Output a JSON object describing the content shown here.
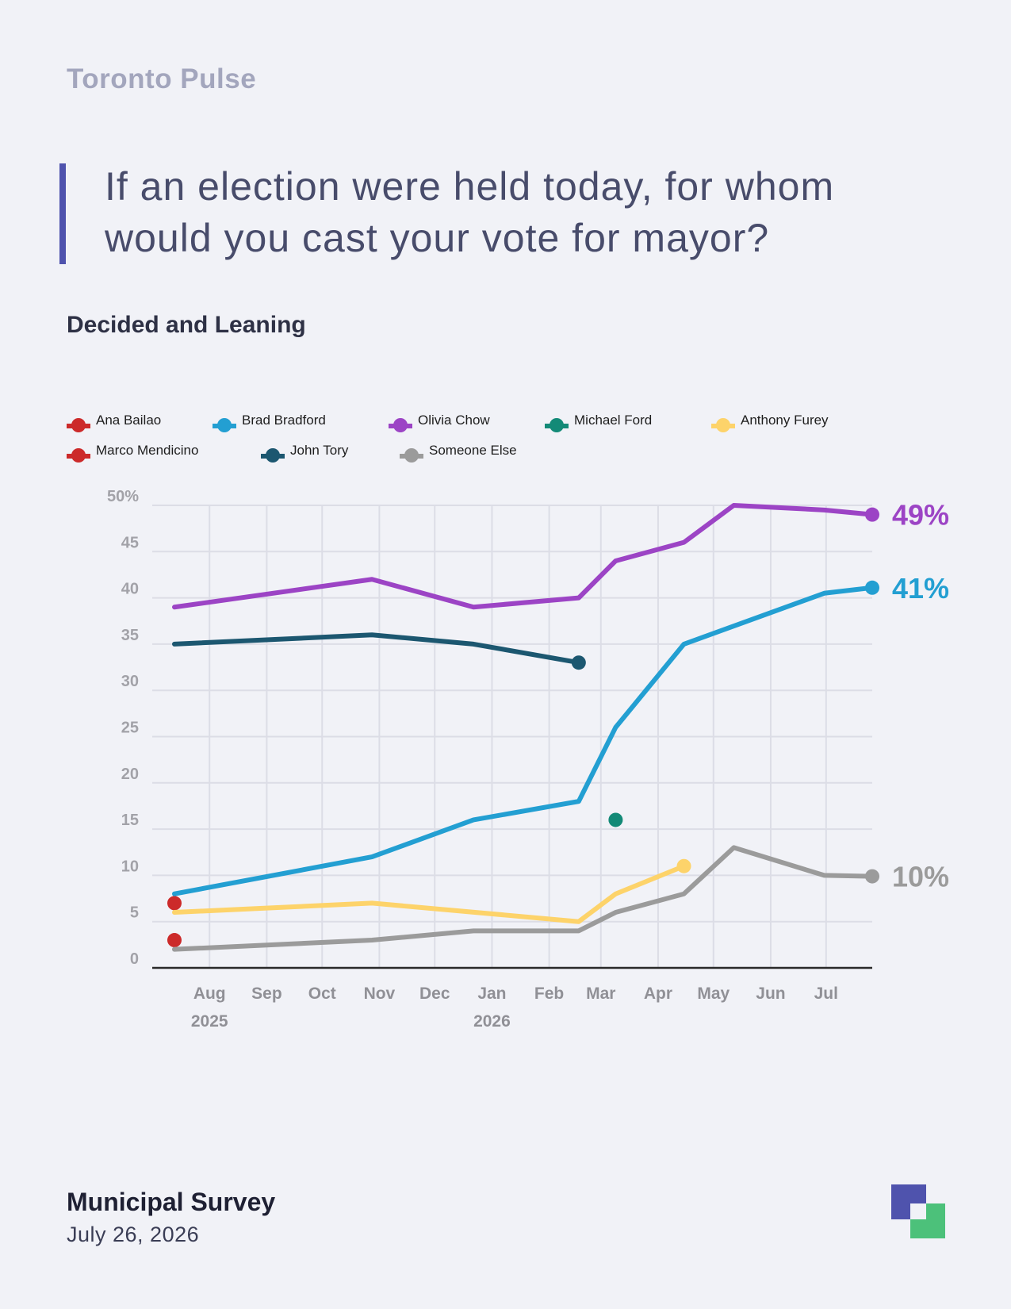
{
  "brand": "Toronto Pulse",
  "question": "If an election were held today, for whom would you cast your vote for mayor?",
  "subtitle": "Decided and Leaning",
  "footer": {
    "title": "Municipal Survey",
    "date": "July 26, 2026"
  },
  "colors": {
    "accent": "#4f53ad",
    "logo_green": "#4cc17a"
  },
  "chart_data": {
    "type": "line",
    "ylim": [
      0,
      50
    ],
    "yticks": [
      "0",
      "5",
      "10",
      "15",
      "20",
      "25",
      "30",
      "35",
      "40",
      "45",
      "50%"
    ],
    "xticks": [
      "Aug",
      "Sep",
      "Oct",
      "Nov",
      "Dec",
      "Jan",
      "Feb",
      "Mar",
      "Apr",
      "May",
      "Jun",
      "Jul"
    ],
    "years": [
      {
        "label": "2025",
        "date": "2025-08-01"
      },
      {
        "label": "2026",
        "date": "2026-01-01"
      }
    ],
    "x_range": [
      "2025-07-13",
      "2026-07-26"
    ],
    "grid": true,
    "legend_position": "top-left",
    "series": [
      {
        "name": "Ana Bailao",
        "color": "#cc2a2a",
        "points": [
          [
            "2025-07-13",
            7
          ]
        ]
      },
      {
        "name": "Brad Bradford",
        "color": "#239fd2",
        "points": [
          [
            "2025-07-13",
            8
          ],
          [
            "2025-10-28",
            12
          ],
          [
            "2025-12-22",
            16
          ],
          [
            "2026-02-17",
            18
          ],
          [
            "2026-03-09",
            26
          ],
          [
            "2026-04-15",
            35
          ],
          [
            "2026-06-30",
            40.5
          ],
          [
            "2026-07-26",
            41.1
          ]
        ],
        "end_label": "41%"
      },
      {
        "name": "Olivia Chow",
        "color": "#9c44c5",
        "points": [
          [
            "2025-07-13",
            39
          ],
          [
            "2025-10-28",
            42
          ],
          [
            "2025-12-22",
            39
          ],
          [
            "2026-02-17",
            40
          ],
          [
            "2026-03-09",
            44
          ],
          [
            "2026-04-15",
            46
          ],
          [
            "2026-05-12",
            50
          ],
          [
            "2026-06-30",
            49.5
          ],
          [
            "2026-07-26",
            49
          ]
        ],
        "end_label": "49%"
      },
      {
        "name": "Michael Ford",
        "color": "#138a77",
        "points": [
          [
            "2026-03-09",
            16
          ]
        ]
      },
      {
        "name": "Anthony Furey",
        "color": "#fdd36a",
        "points": [
          [
            "2025-07-13",
            6
          ],
          [
            "2025-10-28",
            7
          ],
          [
            "2026-02-17",
            5
          ],
          [
            "2026-03-09",
            8
          ],
          [
            "2026-04-15",
            11
          ]
        ]
      },
      {
        "name": "Marco Mendicino",
        "color": "#cc2a2a",
        "points": [
          [
            "2025-07-13",
            3
          ]
        ]
      },
      {
        "name": "John Tory",
        "color": "#1c5770",
        "points": [
          [
            "2025-07-13",
            35
          ],
          [
            "2025-10-28",
            36
          ],
          [
            "2025-12-22",
            35
          ],
          [
            "2026-02-17",
            33
          ]
        ]
      },
      {
        "name": "Someone Else",
        "color": "#9b9b9b",
        "points": [
          [
            "2025-07-13",
            2
          ],
          [
            "2025-10-28",
            3
          ],
          [
            "2025-12-22",
            4
          ],
          [
            "2026-02-17",
            4
          ],
          [
            "2026-03-09",
            6
          ],
          [
            "2026-04-15",
            8
          ],
          [
            "2026-05-12",
            13
          ],
          [
            "2026-06-30",
            10
          ],
          [
            "2026-07-26",
            9.9
          ]
        ],
        "end_label": "10%"
      }
    ]
  }
}
